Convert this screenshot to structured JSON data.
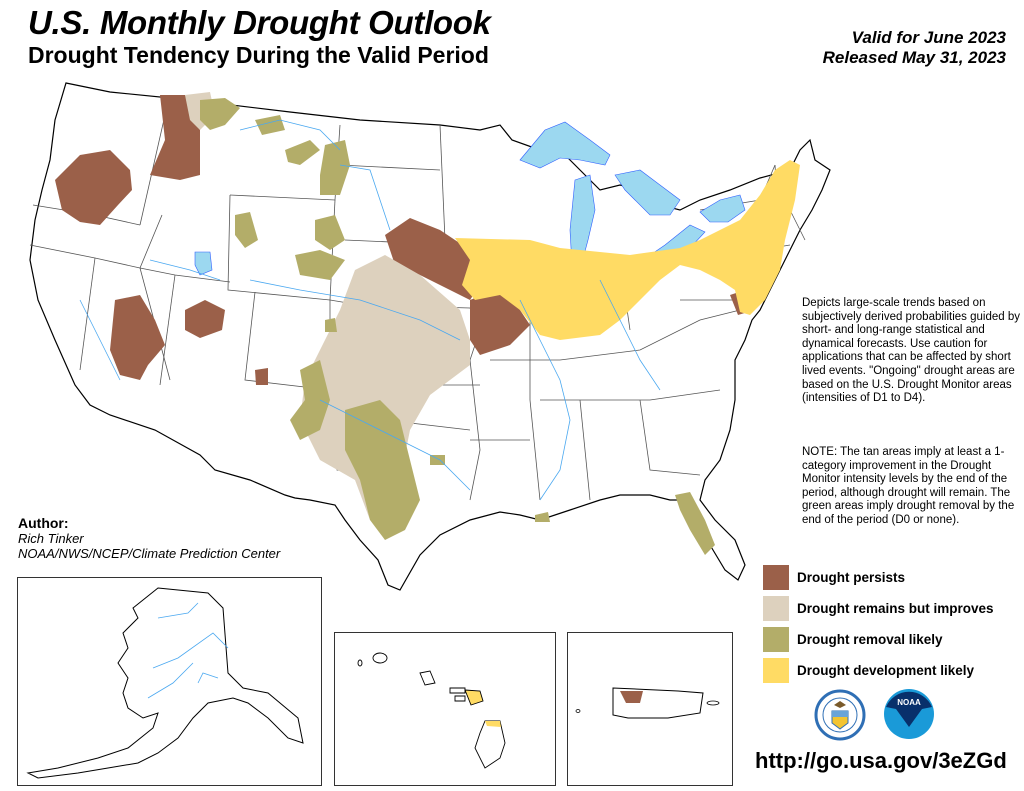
{
  "header": {
    "title": "U.S. Monthly Drought Outlook",
    "subtitle": "Drought Tendency During the Valid Period",
    "valid_for": "Valid for June 2023",
    "released": "Released May 31, 2023"
  },
  "description": {
    "main": "Depicts large-scale trends based on subjectively derived probabilities guided by short- and long-range statistical and dynamical forecasts. Use caution for applications that can be affected by short lived events. \"Ongoing\" drought areas are based on the U.S. Drought Monitor areas (intensities of D1 to D4).",
    "note": "NOTE: The tan areas imply at least a 1-category improvement in the Drought Monitor intensity levels by the end of the period, although drought will remain. The green areas imply drought removal by the end of the period (D0 or none)."
  },
  "author": {
    "label": "Author:",
    "name": "Rich Tinker",
    "org": "NOAA/NWS/NCEP/Climate Prediction Center"
  },
  "legend": [
    {
      "label": "Drought persists",
      "color": "#9b6049"
    },
    {
      "label": "Drought remains but improves",
      "color": "#ddd1be"
    },
    {
      "label": "Drought removal likely",
      "color": "#b3ad69"
    },
    {
      "label": "Drought development likely",
      "color": "#ffdb64"
    }
  ],
  "colors": {
    "water": "#9cd8f0",
    "river": "#4aa8f0",
    "border": "#000000"
  },
  "logos": {
    "commerce": "United States Department of Commerce",
    "noaa": "NOAA"
  },
  "url": "http://go.usa.gov/3eZGd"
}
